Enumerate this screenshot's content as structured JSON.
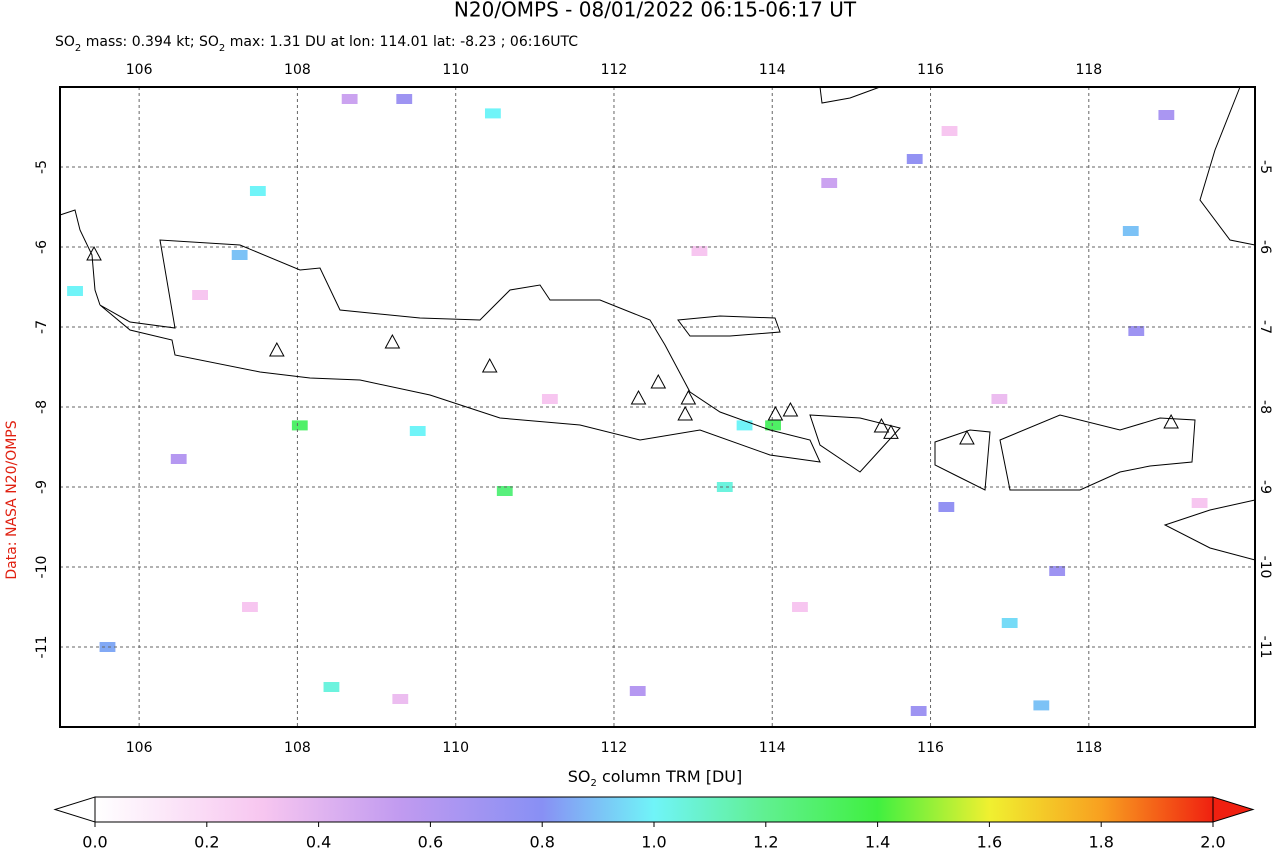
{
  "chart_data": {
    "type": "map",
    "title": "N20/OMPS - 08/01/2022 06:15-06:17 UT",
    "subtitle": [
      "SO",
      "2",
      " mass: 0.394 kt; SO",
      "2",
      " max: 1.31 DU at lon: 114.01 lat: -8.23 ; 06:16UTC"
    ],
    "credit": "Data: NASA N20/OMPS",
    "colorbar_label": [
      "SO",
      "2",
      " column TRM [DU]"
    ],
    "xlim": [
      105,
      120.1
    ],
    "ylim": [
      -12,
      -4
    ],
    "xticks": [
      106,
      108,
      110,
      112,
      114,
      116,
      118
    ],
    "yticks": [
      -5,
      -6,
      -7,
      -8,
      -9,
      -10,
      -11
    ],
    "grid": true,
    "clim": [
      0,
      2
    ],
    "cticks": [
      {
        "value": 0,
        "label": "0.0"
      },
      {
        "value": 0.2,
        "label": "0.2"
      },
      {
        "value": 0.4,
        "label": "0.4"
      },
      {
        "value": 0.6,
        "label": "0.6"
      },
      {
        "value": 0.8,
        "label": "0.8"
      },
      {
        "value": 1,
        "label": "1.0"
      },
      {
        "value": 1.2,
        "label": "1.2"
      },
      {
        "value": 1.4,
        "label": "1.4"
      },
      {
        "value": 1.6,
        "label": "1.6"
      },
      {
        "value": 1.8,
        "label": "1.8"
      },
      {
        "value": 2,
        "label": "2.0"
      }
    ],
    "colormap": [
      {
        "value": 0,
        "color": "#ffffff"
      },
      {
        "value": 0.3,
        "color": "#f7c6f0"
      },
      {
        "value": 0.55,
        "color": "#c09af0"
      },
      {
        "value": 0.8,
        "color": "#8890f4"
      },
      {
        "value": 1.0,
        "color": "#70f4f8"
      },
      {
        "value": 1.2,
        "color": "#60f090"
      },
      {
        "value": 1.4,
        "color": "#40f040"
      },
      {
        "value": 1.6,
        "color": "#f0f030"
      },
      {
        "value": 1.8,
        "color": "#f8a020"
      },
      {
        "value": 2.0,
        "color": "#f02010"
      }
    ],
    "pixels": {
      "lon": [
        110.47,
        107.5,
        107.27,
        105.19,
        108.03,
        109.52,
        110.62,
        113.4,
        113.65,
        114.01,
        118.53,
        117.4,
        117.0,
        108.43,
        105.6,
        115.8,
        118.98,
        118.6,
        116.2,
        117.6,
        115.85,
        109.35,
        106.5,
        112.3,
        114.72,
        108.66,
        106.77,
        113.08,
        111.19,
        116.87,
        107.4,
        114.35,
        119.4,
        109.3,
        116.24
      ],
      "lat": [
        -4.33,
        -5.3,
        -6.1,
        -6.55,
        -8.23,
        -8.3,
        -9.05,
        -9.0,
        -8.23,
        -8.23,
        -5.8,
        -11.73,
        -10.7,
        -11.5,
        -11.0,
        -4.9,
        -4.35,
        -7.05,
        -9.25,
        -10.05,
        -11.8,
        -4.15,
        -8.65,
        -11.55,
        -5.2,
        -4.15,
        -6.6,
        -6.05,
        -7.9,
        -7.9,
        -10.5,
        -10.5,
        -9.2,
        -11.65,
        -4.55
      ],
      "values": [
        1.0,
        1.0,
        0.9,
        1.0,
        1.3,
        1.0,
        1.25,
        1.05,
        1.0,
        1.31,
        0.9,
        0.9,
        0.95,
        1.05,
        0.85,
        0.75,
        0.65,
        0.7,
        0.75,
        0.7,
        0.7,
        0.7,
        0.6,
        0.6,
        0.5,
        0.5,
        0.3,
        0.3,
        0.3,
        0.35,
        0.3,
        0.3,
        0.3,
        0.35,
        0.3
      ]
    },
    "volcanoes": {
      "lon": [
        105.43,
        107.74,
        109.2,
        110.43,
        112.31,
        112.56,
        112.94,
        112.9,
        114.04,
        114.23,
        115.38,
        115.5,
        116.46,
        119.04
      ],
      "lat": [
        -6.1,
        -7.3,
        -7.2,
        -7.5,
        -7.9,
        -7.7,
        -7.9,
        -8.1,
        -8.1,
        -8.05,
        -8.25,
        -8.33,
        -8.4,
        -8.2
      ]
    }
  }
}
